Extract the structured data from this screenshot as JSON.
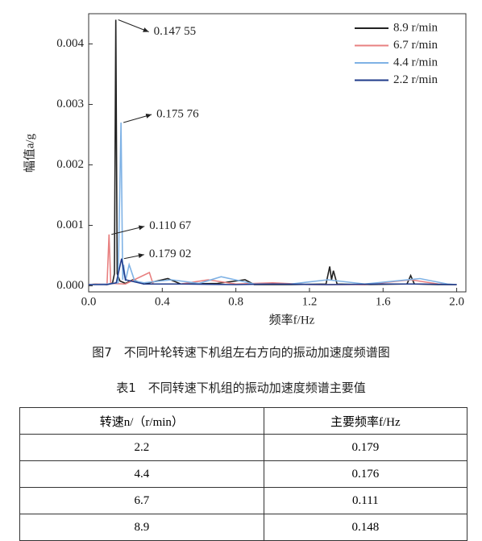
{
  "chart_data": {
    "type": "line",
    "xlabel": "频率f/Hz",
    "ylabel": "幅值a/g",
    "xlim": [
      0,
      2.05
    ],
    "ylim": [
      -0.0001,
      0.0045
    ],
    "xticks": [
      {
        "value": 0,
        "label": "0.0"
      },
      {
        "value": 0.4,
        "label": "0.4"
      },
      {
        "value": 0.8,
        "label": "0.8"
      },
      {
        "value": 1.2,
        "label": "1.2"
      },
      {
        "value": 1.6,
        "label": "1.6"
      },
      {
        "value": 2.0,
        "label": "2.0"
      }
    ],
    "yticks": [
      {
        "value": 0,
        "label": "0.000"
      },
      {
        "value": 0.001,
        "label": "0.001"
      },
      {
        "value": 0.002,
        "label": "0.002"
      },
      {
        "value": 0.003,
        "label": "0.003"
      },
      {
        "value": 0.004,
        "label": "0.004"
      }
    ],
    "legend": "upper right",
    "series": [
      {
        "name": "8.9 r/min",
        "color": "#222222",
        "x": [
          0,
          0.05,
          0.1,
          0.13,
          0.14,
          0.1475,
          0.155,
          0.17,
          0.2,
          0.24,
          0.3,
          0.43,
          0.5,
          0.7,
          0.85,
          0.9,
          1.1,
          1.29,
          1.31,
          1.32,
          1.33,
          1.35,
          1.5,
          1.73,
          1.75,
          1.77,
          1.9,
          2.0
        ],
        "values": [
          2e-05,
          3e-05,
          2e-05,
          5e-05,
          0.0002,
          0.0044,
          0.0002,
          8e-05,
          4e-05,
          0.0001,
          3e-05,
          0.00012,
          3e-05,
          4e-05,
          0.0001,
          2e-05,
          2e-05,
          3e-05,
          0.00032,
          0.0001,
          0.00025,
          3e-05,
          2e-05,
          3e-05,
          0.00017,
          3e-05,
          2e-05,
          2e-05
        ]
      },
      {
        "name": "6.7 r/min",
        "color": "#e88080",
        "x": [
          0,
          0.05,
          0.1,
          0.1107,
          0.12,
          0.2,
          0.33,
          0.35,
          0.5,
          0.65,
          0.8,
          1.0,
          1.2,
          1.5,
          1.75,
          1.9,
          2.0
        ],
        "values": [
          2e-05,
          3e-05,
          3e-05,
          0.00085,
          4e-05,
          3e-05,
          0.00022,
          3e-05,
          3e-05,
          0.0001,
          3e-05,
          5e-05,
          2e-05,
          2e-05,
          0.0001,
          3e-05,
          2e-05
        ]
      },
      {
        "name": "4.4 r/min",
        "color": "#7fb2e5",
        "x": [
          0,
          0.1,
          0.16,
          0.1758,
          0.185,
          0.19,
          0.2,
          0.22,
          0.25,
          0.3,
          0.45,
          0.6,
          0.72,
          0.9,
          1.1,
          1.3,
          1.5,
          1.8,
          1.95,
          2.0
        ],
        "values": [
          2e-05,
          3e-05,
          5e-05,
          0.0027,
          0.0001,
          0.00035,
          8e-05,
          0.00035,
          8e-05,
          5e-05,
          0.0001,
          4e-05,
          0.00015,
          3e-05,
          3e-05,
          0.0001,
          3e-05,
          0.00012,
          3e-05,
          2e-05
        ]
      },
      {
        "name": "2.2 r/min",
        "color": "#1f3a8a",
        "x": [
          0,
          0.1,
          0.15,
          0.179,
          0.2,
          0.3,
          0.5,
          0.8,
          1.0,
          1.3,
          1.6,
          1.8,
          2.0
        ],
        "values": [
          2e-05,
          2e-05,
          5e-05,
          0.00045,
          0.0001,
          3e-05,
          3e-05,
          2e-05,
          3e-05,
          2e-05,
          3e-05,
          3e-05,
          2e-05
        ]
      }
    ],
    "annotations": [
      {
        "text": "0.147 55",
        "x": 0.1475,
        "y": 0.0044
      },
      {
        "text": "0.175 76",
        "x": 0.1758,
        "y": 0.0027
      },
      {
        "text": "0.110 67",
        "x": 0.1107,
        "y": 0.00085
      },
      {
        "text": "0.179 02",
        "x": 0.179,
        "y": 0.00045
      }
    ]
  },
  "figure_caption": "图7　不同叶轮转速下机组左右方向的振动加速度频谱图",
  "table": {
    "title": "表1　不同转速下机组的振动加速度频谱主要值",
    "header": [
      "转速n/（r/min）",
      "主要频率f/Hz"
    ],
    "rows": [
      [
        "2.2",
        "0.179"
      ],
      [
        "4.4",
        "0.176"
      ],
      [
        "6.7",
        "0.111"
      ],
      [
        "8.9",
        "0.148"
      ]
    ]
  }
}
